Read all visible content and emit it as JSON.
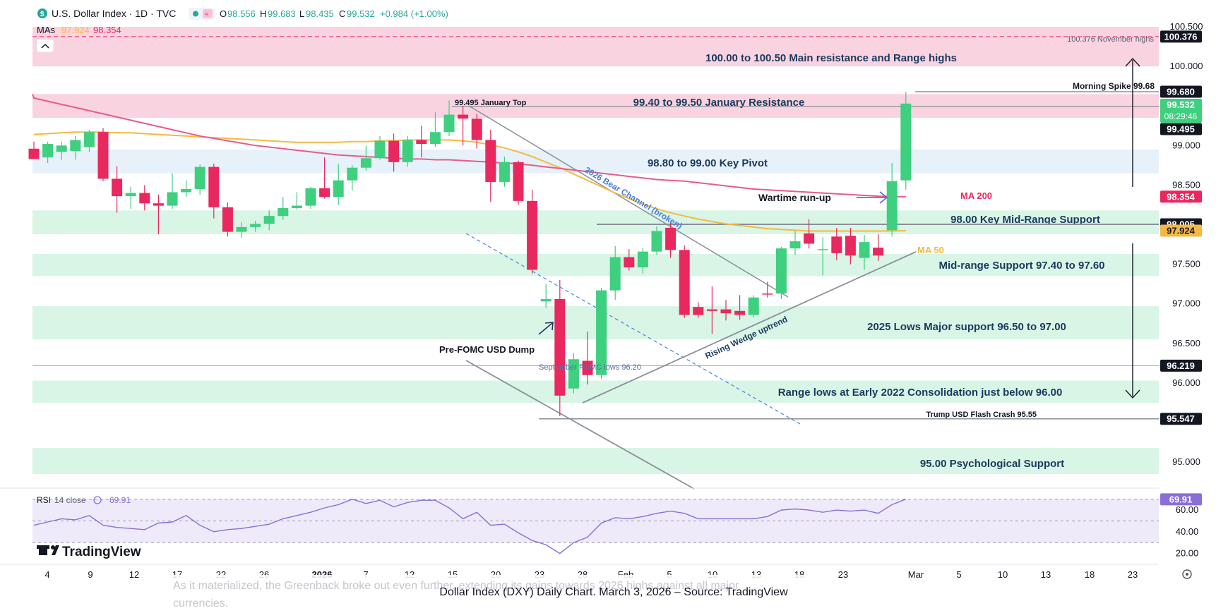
{
  "header": {
    "symbol": "U.S. Dollar Index · 1D · TVC",
    "o_label": "O",
    "o_value": "98.556",
    "h_label": "H",
    "h_value": "99.683",
    "l_label": "L",
    "l_value": "98.435",
    "c_label": "C",
    "c_value": "99.532",
    "change": "+0.984 (+1.00%)",
    "mas_label": "MAs",
    "ma1": "97.924",
    "ma2": "98.354"
  },
  "colors": {
    "up": "#3ecf7f",
    "down": "#e8285e",
    "ma50": "#f5b942",
    "ma200": "#e85c8a",
    "resistance_zone": "#fad3e0",
    "support_zone": "#d8f5e6",
    "pivot_zone": "#e6f1fa",
    "rsi_line": "#8a6fd9",
    "rsi_bg": "#efeafa",
    "annotation": "#1b3a5e"
  },
  "price_axis": {
    "ticks": [
      "100.500",
      "100.000",
      "99.000",
      "98.500",
      "97.500",
      "97.000",
      "96.500",
      "96.000",
      "95.000"
    ],
    "tag_values": [
      {
        "value": 100.376,
        "label": "100.376",
        "bg": "#131722",
        "fg": "#ffffff"
      },
      {
        "value": 99.68,
        "label": "99.680",
        "bg": "#131722",
        "fg": "#ffffff"
      },
      {
        "value": 99.532,
        "label": "99.532",
        "sublabel": "08:29:46",
        "bg": "#3ecf7f",
        "fg": "#ffffff"
      },
      {
        "value": 99.495,
        "label": "99.495",
        "bg": "#131722",
        "fg": "#ffffff"
      },
      {
        "value": 98.354,
        "label": "98.354",
        "bg": "#e8285e",
        "fg": "#ffffff"
      },
      {
        "value": 98.005,
        "label": "98.005",
        "bg": "#131722",
        "fg": "#ffffff"
      },
      {
        "value": 97.924,
        "label": "97.924",
        "bg": "#f5b942",
        "fg": "#131722"
      },
      {
        "value": 96.219,
        "label": "96.219",
        "bg": "#131722",
        "fg": "#ffffff"
      },
      {
        "value": 95.547,
        "label": "95.547",
        "bg": "#131722",
        "fg": "#ffffff"
      }
    ]
  },
  "time_axis": {
    "labels": [
      "4",
      "9",
      "12",
      "17",
      "22",
      "26",
      "2026",
      "7",
      "12",
      "15",
      "20",
      "23",
      "28",
      "Feb",
      "5",
      "10",
      "13",
      "18",
      "23",
      "Mar",
      "5",
      "10",
      "13",
      "18",
      "23"
    ]
  },
  "zones": [
    {
      "low": 100.0,
      "high": 100.5,
      "kind": "resistance",
      "label": "100.00 to 100.50 Main resistance and Range highs"
    },
    {
      "low": 99.35,
      "high": 99.65,
      "kind": "resistance",
      "label": "99.40 to 99.50 January Resistance"
    },
    {
      "low": 98.65,
      "high": 98.95,
      "kind": "pivot",
      "label": "98.80 to 99.00 Key Pivot"
    },
    {
      "low": 97.88,
      "high": 98.18,
      "kind": "support",
      "label": "98.00 Key Mid-Range Support"
    },
    {
      "low": 97.35,
      "high": 97.63,
      "kind": "support",
      "label": "Mid-range Support 97.40 to 97.60"
    },
    {
      "low": 96.55,
      "high": 96.97,
      "kind": "support",
      "label": "2025 Lows Major support 96.50 to 97.00"
    },
    {
      "low": 95.75,
      "high": 96.03,
      "kind": "support",
      "label": "Range lows at Early 2022 Consolidation just below 96.00"
    },
    {
      "low": 94.85,
      "high": 95.18,
      "kind": "support",
      "label": "95.00 Psychological Support"
    }
  ],
  "annotations": {
    "november_highs": "100.376 November highs",
    "morning_spike": "Morning Spike 99.68",
    "january_top": "99.495 January Top",
    "bear_channel": "2026 Bear Channel (broken)",
    "wartime": "Wartime run-up",
    "ma200": "MA 200",
    "ma50": "MA 50",
    "rising_wedge": "Rising Wedge uptrend",
    "pre_fomc": "Pre-FOMC USD Dump",
    "september_fomc": "September FOMC lows 96.20",
    "trump_crash": "Trump USD Flash Crash 95.55"
  },
  "rsi": {
    "label": "RSI",
    "params": "14 close",
    "value": "69.91",
    "ticks": [
      "60.00",
      "40.00",
      "20.00"
    ],
    "values": [
      46,
      49,
      52,
      51,
      55,
      46,
      44,
      43,
      42,
      48,
      49,
      55,
      46,
      40,
      42,
      43,
      45,
      47,
      52,
      55,
      58,
      62,
      65,
      70,
      66,
      69,
      63,
      67,
      69,
      69,
      62,
      52,
      58,
      46,
      47,
      39,
      32,
      28,
      20,
      30,
      35,
      48,
      53,
      52,
      54,
      57,
      59,
      57,
      52,
      52,
      52,
      52,
      52,
      54,
      60,
      61,
      60,
      58,
      60,
      59,
      60,
      57,
      65,
      70
    ],
    "levels": [
      70,
      50,
      30
    ]
  },
  "branding": {
    "logo": "TradingView"
  },
  "caption": {
    "behind_text": "As it materialized, the Greenback broke out even further, extending its gains towards 2026 highs against all major currencies.",
    "title": "Dollar Index (DXY) Daily Chart. March 3, 2026 – Source: TradingView"
  },
  "chart_data": {
    "type": "candlestick",
    "title": "U.S. Dollar Index · 1D · TVC",
    "x_label": "",
    "y_label": "",
    "ylim": [
      94.7,
      100.6
    ],
    "x_tick_labels": [
      "4",
      "9",
      "12",
      "17",
      "22",
      "26",
      "2026",
      "7",
      "12",
      "15",
      "20",
      "23",
      "28",
      "Feb",
      "5",
      "10",
      "13",
      "18",
      "23",
      "Mar",
      "5",
      "10",
      "13",
      "18",
      "23"
    ],
    "candles": [
      {
        "o": 98.96,
        "h": 99.05,
        "l": 98.85,
        "c": 98.83
      },
      {
        "o": 98.85,
        "h": 99.05,
        "l": 98.78,
        "c": 99.02
      },
      {
        "o": 98.92,
        "h": 99.05,
        "l": 98.82,
        "c": 99.0
      },
      {
        "o": 98.93,
        "h": 99.12,
        "l": 98.82,
        "c": 99.07
      },
      {
        "o": 98.98,
        "h": 99.2,
        "l": 98.92,
        "c": 99.17
      },
      {
        "o": 99.17,
        "h": 99.22,
        "l": 98.55,
        "c": 98.58
      },
      {
        "o": 98.58,
        "h": 98.74,
        "l": 98.15,
        "c": 98.36
      },
      {
        "o": 98.36,
        "h": 98.48,
        "l": 98.2,
        "c": 98.4
      },
      {
        "o": 98.4,
        "h": 98.5,
        "l": 98.18,
        "c": 98.27
      },
      {
        "o": 98.27,
        "h": 98.38,
        "l": 97.88,
        "c": 98.24
      },
      {
        "o": 98.24,
        "h": 98.65,
        "l": 98.2,
        "c": 98.41
      },
      {
        "o": 98.41,
        "h": 98.56,
        "l": 98.35,
        "c": 98.45
      },
      {
        "o": 98.45,
        "h": 98.76,
        "l": 98.38,
        "c": 98.73
      },
      {
        "o": 98.73,
        "h": 98.77,
        "l": 98.08,
        "c": 98.22
      },
      {
        "o": 98.22,
        "h": 98.28,
        "l": 97.85,
        "c": 97.91
      },
      {
        "o": 97.91,
        "h": 98.03,
        "l": 97.83,
        "c": 97.97
      },
      {
        "o": 97.97,
        "h": 98.05,
        "l": 97.91,
        "c": 98.01
      },
      {
        "o": 98.01,
        "h": 98.18,
        "l": 97.93,
        "c": 98.11
      },
      {
        "o": 98.11,
        "h": 98.35,
        "l": 98.06,
        "c": 98.21
      },
      {
        "o": 98.21,
        "h": 98.41,
        "l": 98.19,
        "c": 98.24
      },
      {
        "o": 98.24,
        "h": 98.48,
        "l": 98.2,
        "c": 98.46
      },
      {
        "o": 98.46,
        "h": 98.85,
        "l": 98.33,
        "c": 98.35
      },
      {
        "o": 98.35,
        "h": 98.77,
        "l": 98.25,
        "c": 98.56
      },
      {
        "o": 98.56,
        "h": 98.75,
        "l": 98.43,
        "c": 98.72
      },
      {
        "o": 98.72,
        "h": 99.0,
        "l": 98.68,
        "c": 98.84
      },
      {
        "o": 98.84,
        "h": 99.12,
        "l": 98.82,
        "c": 99.06
      },
      {
        "o": 99.06,
        "h": 99.15,
        "l": 98.67,
        "c": 98.79
      },
      {
        "o": 98.79,
        "h": 99.12,
        "l": 98.73,
        "c": 99.07
      },
      {
        "o": 99.07,
        "h": 99.25,
        "l": 98.85,
        "c": 99.02
      },
      {
        "o": 99.02,
        "h": 99.42,
        "l": 98.98,
        "c": 99.17
      },
      {
        "o": 99.17,
        "h": 99.57,
        "l": 99.12,
        "c": 99.39
      },
      {
        "o": 99.39,
        "h": 99.5,
        "l": 99.0,
        "c": 99.34
      },
      {
        "o": 99.34,
        "h": 99.4,
        "l": 98.96,
        "c": 99.07
      },
      {
        "o": 99.07,
        "h": 99.2,
        "l": 98.29,
        "c": 98.54
      },
      {
        "o": 98.54,
        "h": 98.86,
        "l": 98.48,
        "c": 98.79
      },
      {
        "o": 98.79,
        "h": 98.81,
        "l": 98.25,
        "c": 98.3
      },
      {
        "o": 98.3,
        "h": 98.44,
        "l": 97.38,
        "c": 97.43
      },
      {
        "o": 97.03,
        "h": 97.25,
        "l": 96.95,
        "c": 97.06
      },
      {
        "o": 97.06,
        "h": 97.3,
        "l": 95.58,
        "c": 95.84
      },
      {
        "o": 95.93,
        "h": 96.38,
        "l": 95.87,
        "c": 96.3
      },
      {
        "o": 96.28,
        "h": 96.65,
        "l": 95.98,
        "c": 96.1
      },
      {
        "o": 96.1,
        "h": 97.2,
        "l": 96.05,
        "c": 97.17
      },
      {
        "o": 97.17,
        "h": 97.73,
        "l": 97.05,
        "c": 97.59
      },
      {
        "o": 97.59,
        "h": 97.69,
        "l": 97.42,
        "c": 97.46
      },
      {
        "o": 97.46,
        "h": 97.71,
        "l": 97.38,
        "c": 97.66
      },
      {
        "o": 97.66,
        "h": 97.98,
        "l": 97.62,
        "c": 97.92
      },
      {
        "o": 97.96,
        "h": 98.03,
        "l": 97.58,
        "c": 97.68
      },
      {
        "o": 97.68,
        "h": 97.74,
        "l": 96.82,
        "c": 96.86
      },
      {
        "o": 96.96,
        "h": 97.02,
        "l": 96.82,
        "c": 96.86
      },
      {
        "o": 96.93,
        "h": 97.22,
        "l": 96.62,
        "c": 96.91
      },
      {
        "o": 96.93,
        "h": 97.05,
        "l": 96.79,
        "c": 96.88
      },
      {
        "o": 96.91,
        "h": 97.11,
        "l": 96.8,
        "c": 96.86
      },
      {
        "o": 96.86,
        "h": 97.11,
        "l": 96.83,
        "c": 97.08
      },
      {
        "o": 97.13,
        "h": 97.28,
        "l": 97.08,
        "c": 97.12
      },
      {
        "o": 97.13,
        "h": 97.72,
        "l": 97.06,
        "c": 97.7
      },
      {
        "o": 97.7,
        "h": 97.92,
        "l": 97.62,
        "c": 97.79
      },
      {
        "o": 97.89,
        "h": 98.07,
        "l": 97.7,
        "c": 97.76
      },
      {
        "o": 97.69,
        "h": 97.84,
        "l": 97.36,
        "c": 97.69
      },
      {
        "o": 97.85,
        "h": 97.96,
        "l": 97.55,
        "c": 97.64
      },
      {
        "o": 97.86,
        "h": 97.96,
        "l": 97.5,
        "c": 97.61
      },
      {
        "o": 97.58,
        "h": 97.87,
        "l": 97.43,
        "c": 97.78
      },
      {
        "o": 97.71,
        "h": 97.88,
        "l": 97.54,
        "c": 97.61
      },
      {
        "o": 97.93,
        "h": 98.78,
        "l": 97.85,
        "c": 98.55
      },
      {
        "o": 98.56,
        "h": 99.68,
        "l": 98.44,
        "c": 99.53
      }
    ],
    "series": [
      {
        "name": "MA 50",
        "values": [
          99.14,
          99.15,
          99.16,
          99.17,
          99.17,
          99.17,
          99.16,
          99.16,
          99.15,
          99.14,
          99.13,
          99.12,
          99.11,
          99.1,
          99.09,
          99.08,
          99.07,
          99.06,
          99.05,
          99.04,
          99.04,
          99.04,
          99.04,
          99.05,
          99.05,
          99.06,
          99.06,
          99.07,
          99.07,
          99.07,
          99.07,
          99.06,
          99.04,
          99.01,
          98.97,
          98.92,
          98.86,
          98.79,
          98.72,
          98.64,
          98.56,
          98.48,
          98.4,
          98.33,
          98.26,
          98.2,
          98.15,
          98.11,
          98.07,
          98.04,
          98.01,
          97.99,
          97.97,
          97.95,
          97.94,
          97.93,
          97.92,
          97.92,
          97.92,
          97.92,
          97.92,
          97.92,
          97.92,
          97.924
        ]
      },
      {
        "name": "MA 200",
        "values": [
          99.6,
          99.56,
          99.52,
          99.48,
          99.44,
          99.4,
          99.36,
          99.32,
          99.28,
          99.24,
          99.2,
          99.16,
          99.12,
          99.09,
          99.06,
          99.03,
          99.0,
          98.98,
          98.96,
          98.94,
          98.92,
          98.9,
          98.88,
          98.87,
          98.86,
          98.85,
          98.84,
          98.83,
          98.83,
          98.82,
          98.82,
          98.81,
          98.8,
          98.79,
          98.78,
          98.77,
          98.75,
          98.73,
          98.71,
          98.69,
          98.67,
          98.65,
          98.63,
          98.61,
          98.59,
          98.57,
          98.56,
          98.55,
          98.53,
          98.51,
          98.49,
          98.47,
          98.45,
          98.44,
          98.43,
          98.42,
          98.41,
          98.4,
          98.39,
          98.38,
          98.37,
          98.36,
          98.355,
          98.354
        ]
      }
    ]
  }
}
